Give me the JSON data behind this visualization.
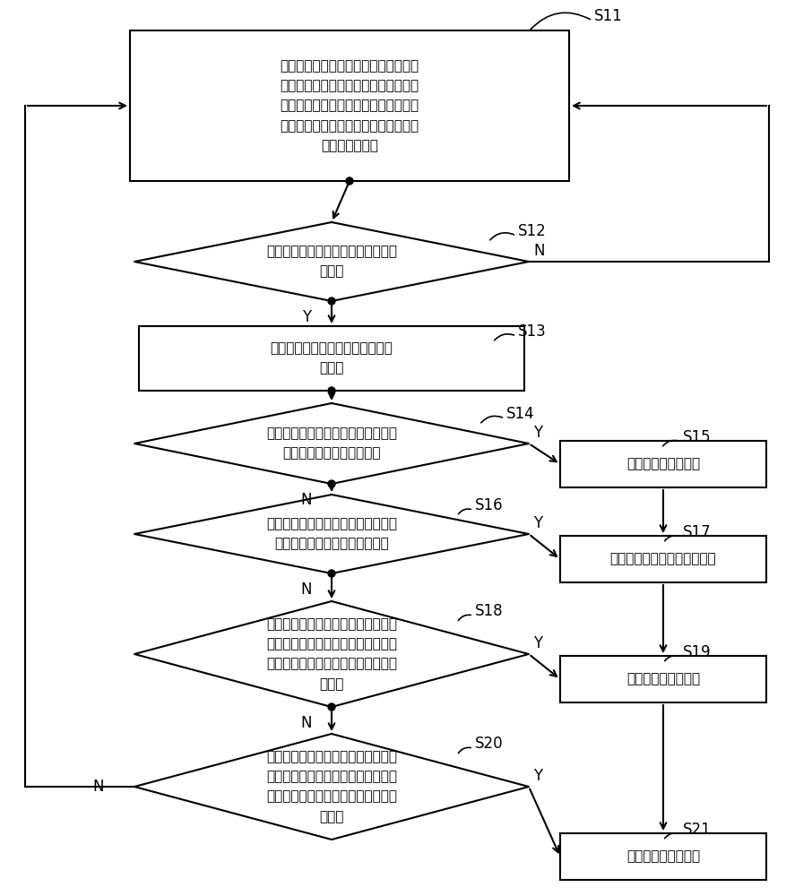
{
  "bg_color": "#ffffff",
  "line_color": "#000000",
  "text_color": "#000000",
  "s11_text": "分别检测滑雪者左侧和右侧小腿迎面骨\n与鞋舌接触的四个压力传感器的压力大\n小，对滑雪者左侧和右侧小腿迎面骨与\n鞋舌接触的四个压力传感器采集的压力\n曲线进行滤波。",
  "s12_text": "判断采集的压力是否超过阈值和预设\n的时间",
  "s13_text": "对滑雪者的滑行状态和滑行方向进\n行匹配",
  "s14_text": "判断滑雪者左侧和右侧小腿迎面骨前\n侧是否同时与鞋舌发生挤压",
  "s15_text": "滑雪者进行加速动作",
  "s16_text": "判断滑雪者左侧和右侧小腿迎面骨略\n靠外侧是否同时与鞋舌发生挤压",
  "s17_text": "滑雪者进行犁式刹车减速动作",
  "s18_text": "判断滑雪者左侧小腿迎面骨前侧或略\n靠外侧与鞋舌发生挤压，同时右侧小\n腿迎面骨前侧或略靠外侧与鞋舌不发\n生挤压",
  "s19_text": "滑雪者进行右转动作",
  "s20_text": "判断滑雪者右侧小腿迎面骨前侧或略\n靠外侧与鞋舌发生挤压，同时左侧小\n腿迎面骨前侧或略靠外侧与鞋舌不发\n生挤压",
  "s21_text": "滑雪者进行左转动作"
}
